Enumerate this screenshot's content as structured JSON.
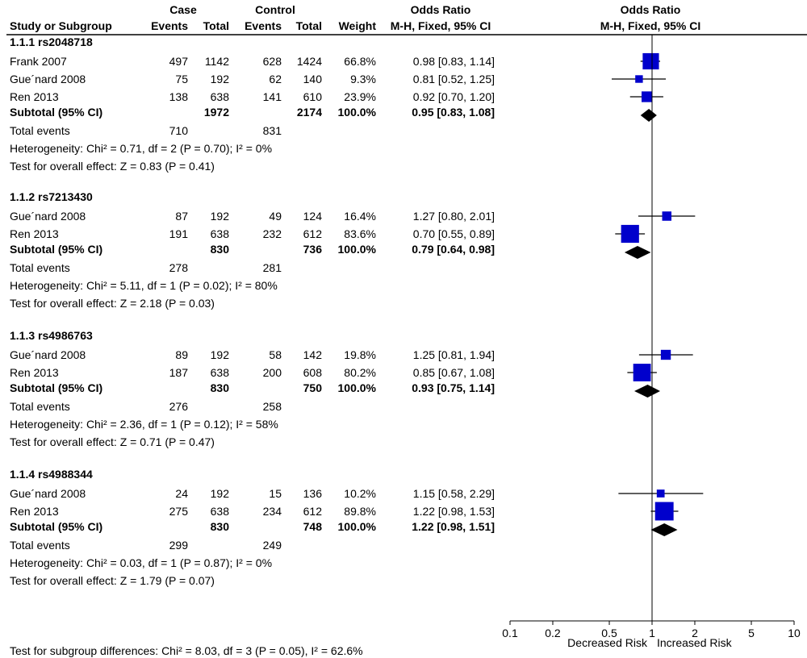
{
  "headers": {
    "case": "Case",
    "control": "Control",
    "odds_ratio_left": "Odds Ratio",
    "odds_ratio_right": "Odds Ratio",
    "study_or_subgroup": "Study or Subgroup",
    "case_events": "Events",
    "case_total": "Total",
    "control_events": "Events",
    "control_total": "Total",
    "weight": "Weight",
    "method_left": "M-H, Fixed, 95% CI",
    "method_right": "M-H, Fixed, 95% CI"
  },
  "colors": {
    "study_marker": "#0000cc",
    "diamond": "#000000",
    "text": "#000000"
  },
  "footer": {
    "subgroup_test": "Test for subgroup differences: Chi² = 8.03, df = 3 (P = 0.05), I² = 62.6%"
  },
  "chart_data": {
    "type": "forest",
    "x_scale": "log",
    "xlim": [
      0.1,
      10
    ],
    "null_line": 1,
    "x_ticks": [
      0.1,
      0.2,
      0.5,
      1,
      2,
      5,
      10
    ],
    "x_tick_labels": [
      "0.1",
      "0.2",
      "0.5",
      "1",
      "2",
      "5",
      "10"
    ],
    "xlabel_left": "Decreased Risk",
    "xlabel_right": "Increased Risk",
    "subgroups": [
      {
        "name": "1.1.1 rs2048718",
        "studies": [
          {
            "study": "Frank 2007",
            "case_events": "497",
            "case_total": "1142",
            "control_events": "628",
            "control_total": "1424",
            "weight": "66.8%",
            "ci_text": "0.98 [0.83, 1.14]",
            "or": 0.98,
            "lower": 0.83,
            "upper": 1.14,
            "w": 66.8
          },
          {
            "study": "Gue´nard 2008",
            "case_events": "75",
            "case_total": "192",
            "control_events": "62",
            "control_total": "140",
            "weight": "9.3%",
            "ci_text": "0.81 [0.52, 1.25]",
            "or": 0.81,
            "lower": 0.52,
            "upper": 1.25,
            "w": 9.3
          },
          {
            "study": "Ren 2013",
            "case_events": "138",
            "case_total": "638",
            "control_events": "141",
            "control_total": "610",
            "weight": "23.9%",
            "ci_text": "0.92 [0.70, 1.20]",
            "or": 0.92,
            "lower": 0.7,
            "upper": 1.2,
            "w": 23.9
          }
        ],
        "subtotal": {
          "label": "Subtotal (95% CI)",
          "case_total": "1972",
          "control_total": "2174",
          "weight": "100.0%",
          "ci_text": "0.95 [0.83, 1.08]",
          "or": 0.95,
          "lower": 0.83,
          "upper": 1.08
        },
        "total_events": {
          "label": "Total events",
          "case": "710",
          "control": "831"
        },
        "heterogeneity": "Heterogeneity: Chi² = 0.71, df = 2 (P = 0.70); I² = 0%",
        "overall_effect": "Test for overall effect: Z = 0.83 (P = 0.41)"
      },
      {
        "name": "1.1.2 rs7213430",
        "studies": [
          {
            "study": "Gue´nard 2008",
            "case_events": "87",
            "case_total": "192",
            "control_events": "49",
            "control_total": "124",
            "weight": "16.4%",
            "ci_text": "1.27 [0.80, 2.01]",
            "or": 1.27,
            "lower": 0.8,
            "upper": 2.01,
            "w": 16.4
          },
          {
            "study": "Ren 2013",
            "case_events": "191",
            "case_total": "638",
            "control_events": "232",
            "control_total": "612",
            "weight": "83.6%",
            "ci_text": "0.70 [0.55, 0.89]",
            "or": 0.7,
            "lower": 0.55,
            "upper": 0.89,
            "w": 83.6
          }
        ],
        "subtotal": {
          "label": "Subtotal (95% CI)",
          "case_total": "830",
          "control_total": "736",
          "weight": "100.0%",
          "ci_text": "0.79 [0.64, 0.98]",
          "or": 0.79,
          "lower": 0.64,
          "upper": 0.98
        },
        "total_events": {
          "label": "Total events",
          "case": "278",
          "control": "281"
        },
        "heterogeneity": "Heterogeneity: Chi² = 5.11, df = 1 (P = 0.02); I² = 80%",
        "overall_effect": "Test for overall effect: Z = 2.18 (P = 0.03)"
      },
      {
        "name": "1.1.3 rs4986763",
        "studies": [
          {
            "study": "Gue´nard 2008",
            "case_events": "89",
            "case_total": "192",
            "control_events": "58",
            "control_total": "142",
            "weight": "19.8%",
            "ci_text": "1.25 [0.81, 1.94]",
            "or": 1.25,
            "lower": 0.81,
            "upper": 1.94,
            "w": 19.8
          },
          {
            "study": "Ren 2013",
            "case_events": "187",
            "case_total": "638",
            "control_events": "200",
            "control_total": "608",
            "weight": "80.2%",
            "ci_text": "0.85 [0.67, 1.08]",
            "or": 0.85,
            "lower": 0.67,
            "upper": 1.08,
            "w": 80.2
          }
        ],
        "subtotal": {
          "label": "Subtotal (95% CI)",
          "case_total": "830",
          "control_total": "750",
          "weight": "100.0%",
          "ci_text": "0.93 [0.75, 1.14]",
          "or": 0.93,
          "lower": 0.75,
          "upper": 1.14
        },
        "total_events": {
          "label": "Total events",
          "case": "276",
          "control": "258"
        },
        "heterogeneity": "Heterogeneity: Chi² = 2.36, df = 1 (P = 0.12); I² = 58%",
        "overall_effect": "Test for overall effect: Z = 0.71 (P = 0.47)"
      },
      {
        "name": "1.1.4 rs4988344",
        "studies": [
          {
            "study": "Gue´nard 2008",
            "case_events": "24",
            "case_total": "192",
            "control_events": "15",
            "control_total": "136",
            "weight": "10.2%",
            "ci_text": "1.15 [0.58, 2.29]",
            "or": 1.15,
            "lower": 0.58,
            "upper": 2.29,
            "w": 10.2
          },
          {
            "study": "Ren 2013",
            "case_events": "275",
            "case_total": "638",
            "control_events": "234",
            "control_total": "612",
            "weight": "89.8%",
            "ci_text": "1.22 [0.98, 1.53]",
            "or": 1.22,
            "lower": 0.98,
            "upper": 1.53,
            "w": 89.8
          }
        ],
        "subtotal": {
          "label": "Subtotal (95% CI)",
          "case_total": "830",
          "control_total": "748",
          "weight": "100.0%",
          "ci_text": "1.22 [0.98, 1.51]",
          "or": 1.22,
          "lower": 0.98,
          "upper": 1.51
        },
        "total_events": {
          "label": "Total events",
          "case": "299",
          "control": "249"
        },
        "heterogeneity": "Heterogeneity: Chi² = 0.03, df = 1 (P = 0.87); I² = 0%",
        "overall_effect": "Test for overall effect: Z = 1.79 (P = 0.07)"
      }
    ]
  }
}
